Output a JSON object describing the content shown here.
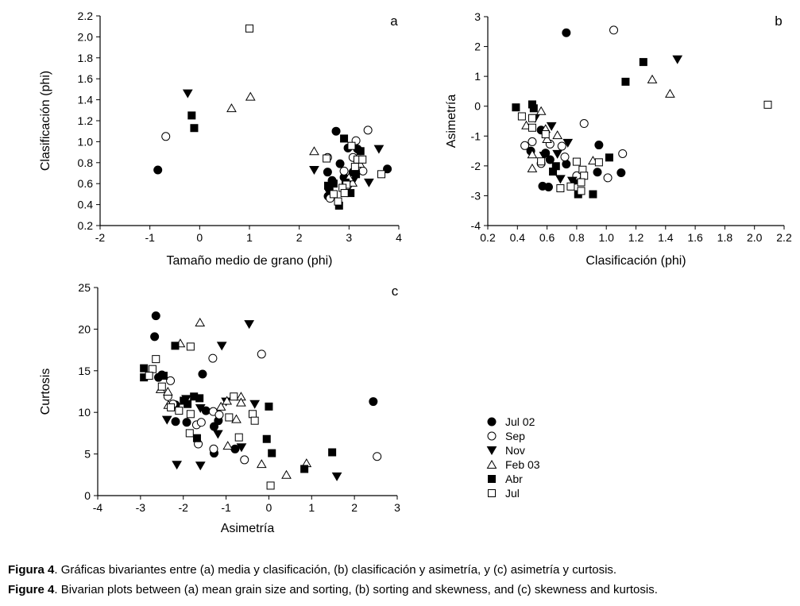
{
  "legend": [
    {
      "label": "Jul 02",
      "marker": "filled-circle"
    },
    {
      "label": "Sep",
      "marker": "open-circle"
    },
    {
      "label": "Nov",
      "marker": "filled-down-triangle"
    },
    {
      "label": "Feb 03",
      "marker": "open-up-triangle"
    },
    {
      "label": "Abr",
      "marker": "filled-square"
    },
    {
      "label": "Jul",
      "marker": "open-square"
    }
  ],
  "caption": {
    "es_bold": "Figura 4",
    "es_text": ". Gráficas bivariantes entre (a) media y clasificación, (b) clasificación y asimetría, y (c) asimetría y curtosis.",
    "en_bold": "Figure 4",
    "en_text": ". Bivarian plots between (a) mean grain size and sorting, (b) sorting and skewness, and (c) skewness and kurtosis."
  },
  "colors": {
    "marker": "#000000",
    "open_fill": "#ffffff"
  },
  "chart_data": [
    {
      "type": "scatter",
      "panel_label": "a",
      "xlabel": "Tamaño medio de grano (phi)",
      "ylabel": "Clasificación (phi)",
      "xlim": [
        -2,
        4
      ],
      "ylim": [
        0.2,
        2.2
      ],
      "xticks": [
        "-2",
        "-1",
        "0",
        "1",
        "2",
        "3",
        "4"
      ],
      "yticks": [
        "0.2",
        "0.4",
        "0.6",
        "0.8",
        "1.0",
        "1.2",
        "1.4",
        "1.6",
        "1.8",
        "2.0",
        "2.2"
      ],
      "grid": false,
      "series": [
        {
          "name": "Jul 02",
          "points": [
            [
              -0.84,
              0.73
            ],
            [
              2.74,
              1.1
            ],
            [
              2.82,
              0.79
            ],
            [
              2.57,
              0.71
            ],
            [
              3.77,
              0.74
            ],
            [
              2.98,
              0.94
            ],
            [
              3.17,
              0.93
            ],
            [
              2.58,
              0.48
            ],
            [
              2.66,
              0.63
            ],
            [
              2.9,
              0.66
            ],
            [
              3.08,
              0.71
            ],
            [
              2.6,
              0.55
            ]
          ]
        },
        {
          "name": "Sep",
          "points": [
            [
              -0.68,
              1.05
            ],
            [
              3.38,
              1.11
            ],
            [
              3.14,
              1.01
            ],
            [
              2.57,
              0.85
            ],
            [
              2.9,
              0.72
            ],
            [
              3.08,
              0.85
            ],
            [
              3.28,
              0.72
            ],
            [
              2.62,
              0.46
            ],
            [
              2.97,
              0.58
            ]
          ]
        },
        {
          "name": "Nov",
          "points": [
            [
              -0.24,
              1.46
            ],
            [
              2.3,
              0.73
            ],
            [
              3.6,
              0.93
            ],
            [
              3.4,
              0.61
            ],
            [
              3.08,
              0.62
            ],
            [
              3.22,
              0.81
            ]
          ]
        },
        {
          "name": "Feb 03",
          "points": [
            [
              0.64,
              1.32
            ],
            [
              1.02,
              1.43
            ],
            [
              2.3,
              0.91
            ],
            [
              3.07,
              0.61
            ],
            [
              3.0,
              0.66
            ],
            [
              3.22,
              0.79
            ]
          ]
        },
        {
          "name": "Abr",
          "points": [
            [
              -0.16,
              1.25
            ],
            [
              -0.11,
              1.13
            ],
            [
              2.9,
              1.03
            ],
            [
              3.23,
              0.91
            ],
            [
              2.8,
              0.39
            ],
            [
              3.03,
              0.51
            ],
            [
              2.58,
              0.58
            ],
            [
              2.93,
              0.61
            ],
            [
              3.14,
              0.69
            ],
            [
              2.69,
              0.6
            ]
          ]
        },
        {
          "name": "Jul",
          "points": [
            [
              1.0,
              2.08
            ],
            [
              3.05,
              0.96
            ],
            [
              3.17,
              0.83
            ],
            [
              3.27,
              0.83
            ],
            [
              3.65,
              0.69
            ],
            [
              2.55,
              0.84
            ],
            [
              3.12,
              0.76
            ],
            [
              2.95,
              0.59
            ],
            [
              2.87,
              0.56
            ],
            [
              2.69,
              0.5
            ],
            [
              2.78,
              0.43
            ],
            [
              2.91,
              0.51
            ]
          ]
        }
      ]
    },
    {
      "type": "scatter",
      "panel_label": "b",
      "xlabel": "Clasificación (phi)",
      "ylabel": "Asimetría",
      "xlim": [
        0.2,
        2.2
      ],
      "ylim": [
        -4,
        3
      ],
      "xticks": [
        "0.2",
        "0.4",
        "0.6",
        "0.8",
        "1.0",
        "1.2",
        "1.4",
        "1.6",
        "1.8",
        "2.0",
        "2.2"
      ],
      "yticks": [
        "-4",
        "-3",
        "-2",
        "-1",
        "0",
        "1",
        "2",
        "3"
      ],
      "grid": false,
      "series": [
        {
          "name": "Jul 02",
          "points": [
            [
              0.73,
              2.46
            ],
            [
              0.95,
              -1.3
            ],
            [
              0.94,
              -2.21
            ],
            [
              1.1,
              -2.23
            ],
            [
              0.57,
              -2.68
            ],
            [
              0.61,
              -2.71
            ],
            [
              0.49,
              -1.5
            ],
            [
              0.59,
              -1.57
            ],
            [
              0.56,
              -0.8
            ],
            [
              0.73,
              -1.94
            ],
            [
              0.79,
              -2.48
            ],
            [
              0.62,
              -1.79
            ]
          ]
        },
        {
          "name": "Sep",
          "points": [
            [
              1.05,
              2.55
            ],
            [
              0.85,
              -0.58
            ],
            [
              1.11,
              -1.59
            ],
            [
              1.01,
              -2.4
            ],
            [
              0.45,
              -1.32
            ],
            [
              0.5,
              -1.19
            ],
            [
              0.62,
              -1.27
            ],
            [
              0.7,
              -1.34
            ],
            [
              0.56,
              -1.92
            ],
            [
              0.8,
              -2.33
            ],
            [
              0.72,
              -1.7
            ]
          ]
        },
        {
          "name": "Nov",
          "points": [
            [
              1.48,
              1.57
            ],
            [
              0.63,
              -0.67
            ],
            [
              0.52,
              -0.4
            ],
            [
              0.74,
              -1.23
            ],
            [
              0.58,
              -1.66
            ],
            [
              0.69,
              -2.44
            ],
            [
              0.77,
              -2.5
            ],
            [
              0.67,
              -1.6
            ]
          ]
        },
        {
          "name": "Feb 03",
          "points": [
            [
              1.31,
              0.9
            ],
            [
              1.43,
              0.42
            ],
            [
              0.56,
              -0.16
            ],
            [
              0.46,
              -0.64
            ],
            [
              0.59,
              -0.76
            ],
            [
              0.67,
              -0.97
            ],
            [
              0.6,
              -1.1
            ],
            [
              0.5,
              -1.61
            ],
            [
              0.5,
              -2.08
            ],
            [
              0.91,
              -1.82
            ]
          ]
        },
        {
          "name": "Abr",
          "points": [
            [
              1.25,
              1.48
            ],
            [
              1.13,
              0.82
            ],
            [
              0.39,
              -0.04
            ],
            [
              0.5,
              0.06
            ],
            [
              1.02,
              -1.72
            ],
            [
              0.91,
              -2.95
            ],
            [
              0.81,
              -2.95
            ],
            [
              0.64,
              -2.19
            ],
            [
              0.66,
              -2.01
            ],
            [
              0.51,
              -0.07
            ]
          ]
        },
        {
          "name": "Jul",
          "points": [
            [
              2.09,
              0.05
            ],
            [
              0.43,
              -0.34
            ],
            [
              0.5,
              -0.4
            ],
            [
              0.5,
              -0.72
            ],
            [
              0.59,
              -0.94
            ],
            [
              0.56,
              -1.85
            ],
            [
              0.8,
              -1.86
            ],
            [
              0.95,
              -1.88
            ],
            [
              0.84,
              -2.13
            ],
            [
              0.85,
              -2.33
            ],
            [
              0.83,
              -2.55
            ],
            [
              0.83,
              -2.84
            ],
            [
              0.76,
              -2.69
            ],
            [
              0.69,
              -2.75
            ]
          ]
        }
      ]
    },
    {
      "type": "scatter",
      "panel_label": "c",
      "xlabel": "Asimetría",
      "ylabel": "Curtosis",
      "xlim": [
        -4,
        3
      ],
      "ylim": [
        0,
        25
      ],
      "xticks": [
        "-4",
        "-3",
        "-2",
        "-1",
        "0",
        "1",
        "2",
        "3"
      ],
      "yticks": [
        "0",
        "5",
        "10",
        "15",
        "20",
        "25"
      ],
      "grid": false,
      "series": [
        {
          "name": "Jul 02",
          "points": [
            [
              -2.64,
              21.6
            ],
            [
              -2.67,
              19.1
            ],
            [
              -2.58,
              14.2
            ],
            [
              -2.5,
              14.5
            ],
            [
              -1.55,
              14.6
            ],
            [
              2.44,
              11.3
            ],
            [
              -2.18,
              10.9
            ],
            [
              -2.18,
              8.9
            ],
            [
              -1.92,
              8.8
            ],
            [
              -1.47,
              10.2
            ],
            [
              -1.28,
              8.3
            ],
            [
              -1.18,
              9.0
            ],
            [
              -1.28,
              5.1
            ],
            [
              -0.79,
              5.6
            ]
          ]
        },
        {
          "name": "Sep",
          "points": [
            [
              -2.3,
              13.8
            ],
            [
              -2.36,
              11.9
            ],
            [
              -1.31,
              16.5
            ],
            [
              -0.17,
              17.0
            ],
            [
              -1.69,
              8.5
            ],
            [
              -1.58,
              8.8
            ],
            [
              -1.65,
              6.2
            ],
            [
              -1.3,
              10.1
            ],
            [
              -1.16,
              9.7
            ],
            [
              -1.29,
              5.6
            ],
            [
              -0.57,
              4.3
            ],
            [
              2.53,
              4.7
            ],
            [
              -2.24,
              11.0
            ]
          ]
        },
        {
          "name": "Nov",
          "points": [
            [
              -0.46,
              20.6
            ],
            [
              -1.1,
              18.0
            ],
            [
              -2.38,
              9.1
            ],
            [
              -2.15,
              3.7
            ],
            [
              -1.6,
              3.6
            ],
            [
              -1.6,
              10.5
            ],
            [
              -1.19,
              7.4
            ],
            [
              -0.64,
              5.8
            ],
            [
              -0.33,
              11.0
            ],
            [
              1.59,
              2.3
            ],
            [
              -1.0,
              11.3
            ],
            [
              -1.93,
              11.6
            ]
          ]
        },
        {
          "name": "Feb 03",
          "points": [
            [
              -1.61,
              20.8
            ],
            [
              -2.07,
              18.3
            ],
            [
              -2.53,
              12.8
            ],
            [
              -2.36,
              12.5
            ],
            [
              -2.35,
              10.9
            ],
            [
              -1.12,
              10.7
            ],
            [
              -0.98,
              11.4
            ],
            [
              -0.65,
              11.9
            ],
            [
              -0.65,
              11.2
            ],
            [
              -0.76,
              9.2
            ],
            [
              -0.96,
              6.0
            ],
            [
              -0.17,
              3.8
            ],
            [
              0.41,
              2.5
            ],
            [
              0.88,
              3.9
            ]
          ]
        },
        {
          "name": "Abr",
          "points": [
            [
              -2.92,
              15.3
            ],
            [
              -2.92,
              14.2
            ],
            [
              -2.19,
              18.0
            ],
            [
              -2.46,
              14.4
            ],
            [
              -1.99,
              11.4
            ],
            [
              -1.75,
              11.9
            ],
            [
              -1.62,
              11.7
            ],
            [
              -1.68,
              6.9
            ],
            [
              0.0,
              10.7
            ],
            [
              -0.05,
              6.8
            ],
            [
              0.07,
              5.1
            ],
            [
              1.48,
              5.2
            ],
            [
              0.83,
              3.2
            ],
            [
              -1.9,
              11.0
            ]
          ]
        },
        {
          "name": "Jul",
          "points": [
            [
              -2.64,
              16.4
            ],
            [
              -2.72,
              15.2
            ],
            [
              -2.8,
              14.4
            ],
            [
              -2.5,
              13.1
            ],
            [
              -2.29,
              10.6
            ],
            [
              -2.1,
              10.2
            ],
            [
              -1.83,
              17.9
            ],
            [
              -1.83,
              9.8
            ],
            [
              -1.85,
              7.5
            ],
            [
              -0.82,
              11.9
            ],
            [
              -0.93,
              9.4
            ],
            [
              -0.38,
              9.8
            ],
            [
              -0.33,
              9.0
            ],
            [
              -0.7,
              7.0
            ],
            [
              0.04,
              1.2
            ]
          ]
        }
      ]
    }
  ]
}
